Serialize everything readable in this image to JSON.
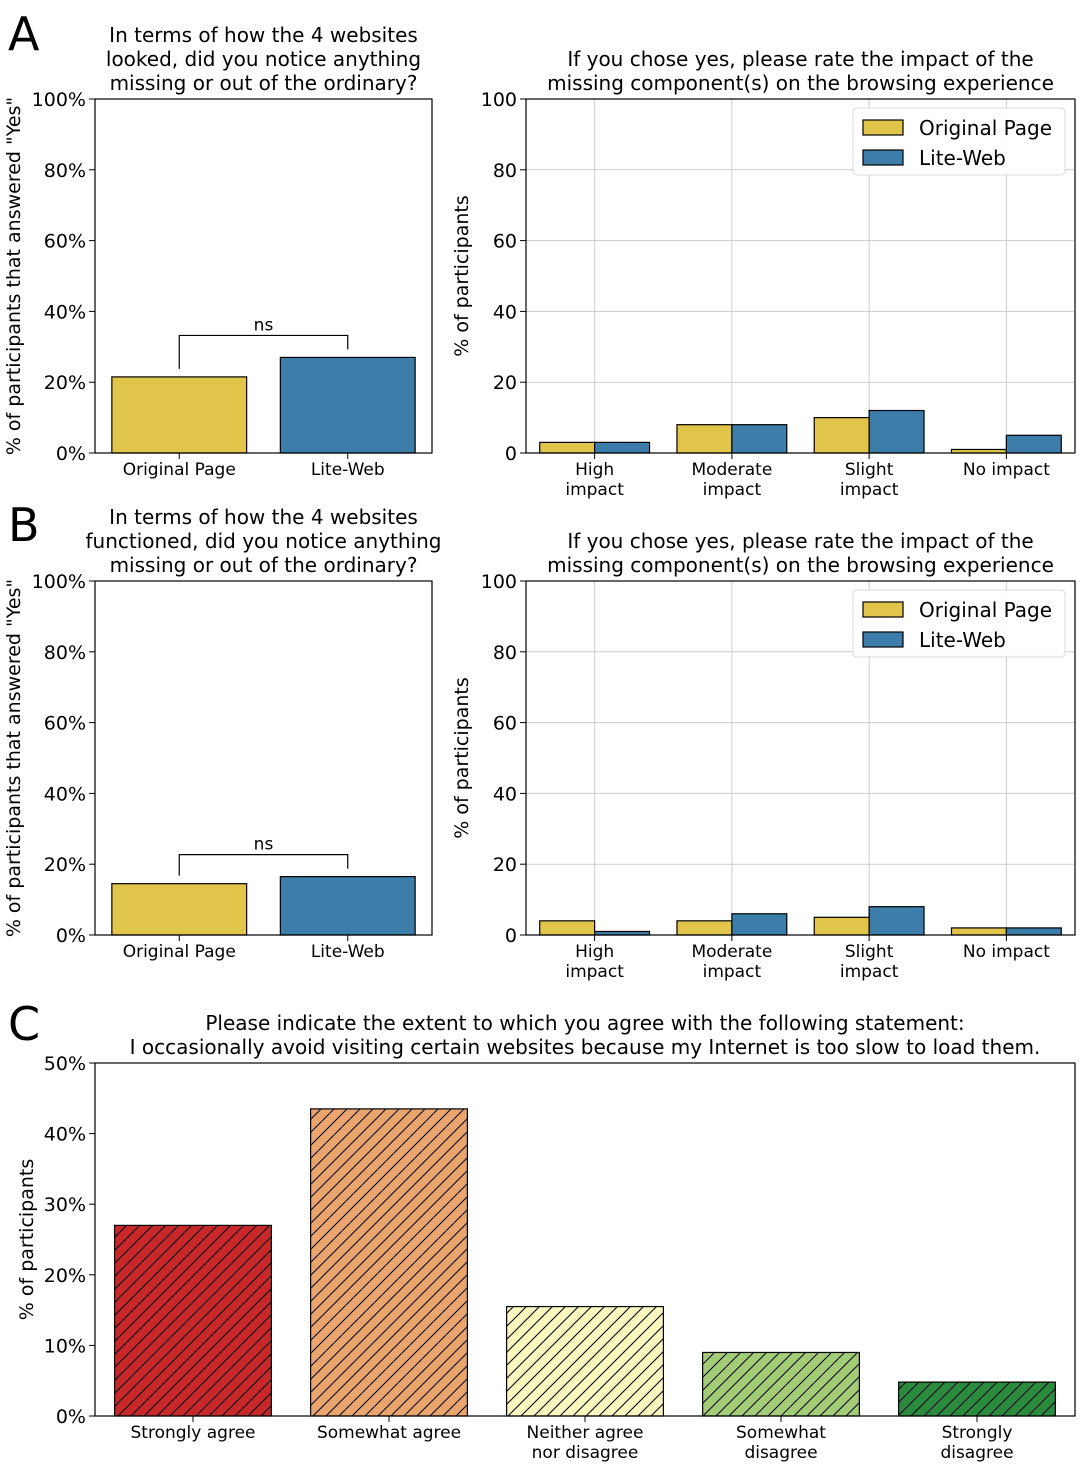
{
  "panel_letters": [
    "A",
    "B",
    "C"
  ],
  "colors": {
    "original_page": "#E1C44A",
    "lite_web": "#3C7DAA",
    "grid": "#cccccc",
    "likert": [
      "#C8282A",
      "#EAA46D",
      "#FAF7BF",
      "#A3CC76",
      "#2A8B3E"
    ]
  },
  "chart_data": [
    {
      "id": "A-left",
      "type": "bar",
      "title": [
        "In terms of how the 4 websites",
        "looked, did you notice anything",
        "missing or out of the ordinary?"
      ],
      "xlabel": "",
      "ylabel": "% of participants that answered \"Yes\"",
      "categories": [
        "Original Page",
        "Lite-Web"
      ],
      "values": [
        21.5,
        27
      ],
      "ylim": [
        0,
        100
      ],
      "yticks": [
        "0%",
        "20%",
        "40%",
        "60%",
        "80%",
        "100%"
      ],
      "annotation": "ns",
      "grid": false
    },
    {
      "id": "A-right",
      "type": "bar",
      "title": [
        "If you chose yes, please rate the impact of the",
        "missing component(s) on the browsing experience"
      ],
      "xlabel": "",
      "ylabel": "% of participants",
      "categories": [
        [
          "High",
          "impact"
        ],
        [
          "Moderate",
          "impact"
        ],
        [
          "Slight",
          "impact"
        ],
        [
          "No impact"
        ]
      ],
      "series": [
        {
          "name": "Original Page",
          "values": [
            3,
            8,
            10,
            1
          ]
        },
        {
          "name": "Lite-Web",
          "values": [
            3,
            8,
            12,
            5
          ]
        }
      ],
      "ylim": [
        0,
        100
      ],
      "yticks": [
        "0",
        "20",
        "40",
        "60",
        "80",
        "100"
      ],
      "legend": "top-right",
      "grid": true
    },
    {
      "id": "B-left",
      "type": "bar",
      "title": [
        "In terms of how the 4 websites",
        "functioned, did you notice anything",
        "missing or out of the ordinary?"
      ],
      "xlabel": "",
      "ylabel": "% of participants that answered \"Yes\"",
      "categories": [
        "Original Page",
        "Lite-Web"
      ],
      "values": [
        14.5,
        16.5
      ],
      "ylim": [
        0,
        100
      ],
      "yticks": [
        "0%",
        "20%",
        "40%",
        "60%",
        "80%",
        "100%"
      ],
      "annotation": "ns",
      "grid": false
    },
    {
      "id": "B-right",
      "type": "bar",
      "title": [
        "If you chose yes, please rate the impact of the",
        "missing component(s) on the browsing experience"
      ],
      "xlabel": "",
      "ylabel": "% of participants",
      "categories": [
        [
          "High",
          "impact"
        ],
        [
          "Moderate",
          "impact"
        ],
        [
          "Slight",
          "impact"
        ],
        [
          "No impact"
        ]
      ],
      "series": [
        {
          "name": "Original Page",
          "values": [
            4,
            4,
            5,
            2
          ]
        },
        {
          "name": "Lite-Web",
          "values": [
            1,
            6,
            8,
            2
          ]
        }
      ],
      "ylim": [
        0,
        100
      ],
      "yticks": [
        "0",
        "20",
        "40",
        "60",
        "80",
        "100"
      ],
      "legend": "top-right",
      "grid": true
    },
    {
      "id": "C",
      "type": "bar",
      "title": [
        "Please indicate the extent to which you agree with the following statement:",
        "I occasionally avoid visiting certain websites because my Internet is too slow to load them."
      ],
      "xlabel": "",
      "ylabel": "% of participants",
      "categories": [
        [
          "Strongly agree"
        ],
        [
          "Somewhat agree"
        ],
        [
          "Neither agree",
          "nor disagree"
        ],
        [
          "Somewhat",
          "disagree"
        ],
        [
          "Strongly",
          "disagree"
        ]
      ],
      "values": [
        27,
        43.5,
        15.5,
        9,
        4.8
      ],
      "ylim": [
        0,
        50
      ],
      "yticks": [
        "0%",
        "10%",
        "20%",
        "30%",
        "40%",
        "50%"
      ],
      "hatch": true,
      "grid": false
    }
  ]
}
